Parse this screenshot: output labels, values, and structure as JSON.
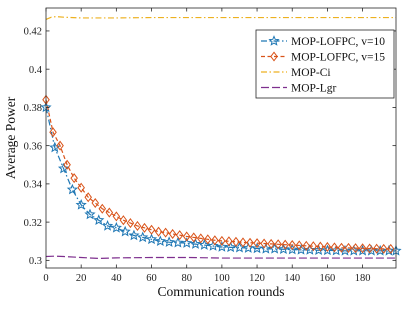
{
  "chart_data": {
    "type": "line",
    "title": "",
    "xlabel": "Communication rounds",
    "ylabel": "Average Power",
    "xlim": [
      0,
      199
    ],
    "ylim": [
      0.296,
      0.432
    ],
    "xticks": [
      0,
      20,
      40,
      60,
      80,
      100,
      120,
      140,
      160,
      180
    ],
    "yticks": [
      0.3,
      0.32,
      0.34,
      0.36,
      0.38,
      0.4,
      0.42
    ],
    "ytick_labels": [
      "0.3",
      "0.32",
      "0.34",
      "0.36",
      "0.38",
      "0.4",
      "0.42"
    ],
    "grid": false,
    "legend_position": "top-right",
    "series": [
      {
        "name": "MOP-LOFPC, v=10",
        "color": "#1f77b4",
        "line_style": "dash-dot",
        "marker": "star",
        "x": [
          0,
          5,
          10,
          15,
          20,
          25,
          30,
          35,
          40,
          45,
          50,
          55,
          60,
          65,
          70,
          75,
          80,
          85,
          90,
          95,
          100,
          105,
          110,
          115,
          120,
          125,
          130,
          135,
          140,
          145,
          150,
          155,
          160,
          165,
          170,
          175,
          180,
          185,
          190,
          195,
          199
        ],
        "y": [
          0.38,
          0.359,
          0.348,
          0.337,
          0.329,
          0.324,
          0.321,
          0.318,
          0.317,
          0.315,
          0.313,
          0.312,
          0.311,
          0.31,
          0.3095,
          0.3092,
          0.309,
          0.3085,
          0.308,
          0.3075,
          0.307,
          0.3068,
          0.3066,
          0.3064,
          0.3062,
          0.306,
          0.306,
          0.3058,
          0.3056,
          0.3055,
          0.3054,
          0.3053,
          0.3052,
          0.3051,
          0.305,
          0.305,
          0.305,
          0.305,
          0.305,
          0.305,
          0.305
        ]
      },
      {
        "name": "MOP-LOFPC, v=15",
        "color": "#d95319",
        "line_style": "dashed",
        "marker": "diamond",
        "x": [
          0,
          4,
          8,
          12,
          16,
          20,
          24,
          28,
          32,
          36,
          40,
          44,
          48,
          52,
          56,
          60,
          64,
          68,
          72,
          76,
          80,
          84,
          88,
          92,
          96,
          100,
          104,
          108,
          112,
          116,
          120,
          124,
          128,
          132,
          136,
          140,
          144,
          148,
          152,
          156,
          160,
          164,
          168,
          172,
          176,
          180,
          184,
          188,
          192,
          196
        ],
        "y": [
          0.384,
          0.367,
          0.36,
          0.35,
          0.343,
          0.338,
          0.333,
          0.33,
          0.327,
          0.325,
          0.323,
          0.321,
          0.3195,
          0.318,
          0.317,
          0.316,
          0.315,
          0.3145,
          0.3138,
          0.3132,
          0.3125,
          0.312,
          0.3115,
          0.311,
          0.3105,
          0.3102,
          0.31,
          0.3097,
          0.3094,
          0.3092,
          0.309,
          0.3088,
          0.3086,
          0.3084,
          0.3082,
          0.308,
          0.3078,
          0.3076,
          0.3074,
          0.3072,
          0.307,
          0.3068,
          0.3066,
          0.3065,
          0.3064,
          0.3063,
          0.3062,
          0.3061,
          0.306,
          0.306
        ]
      },
      {
        "name": "MOP-Ci",
        "color": "#edb120",
        "line_style": "dash-dot",
        "marker": "none",
        "x": [
          0,
          3,
          6,
          10,
          20,
          40,
          60,
          100,
          150,
          199
        ],
        "y": [
          0.426,
          0.4272,
          0.4275,
          0.4272,
          0.4268,
          0.4268,
          0.427,
          0.427,
          0.427,
          0.427
        ]
      },
      {
        "name": "MOP-Lgr",
        "color": "#7e2f8e",
        "line_style": "long-dash",
        "marker": "none",
        "x": [
          0,
          5,
          10,
          20,
          30,
          40,
          60,
          80,
          100,
          120,
          140,
          160,
          180,
          199
        ],
        "y": [
          0.302,
          0.3022,
          0.302,
          0.3015,
          0.301,
          0.3013,
          0.3015,
          0.3015,
          0.3012,
          0.3012,
          0.3012,
          0.3012,
          0.3012,
          0.3012
        ]
      }
    ]
  }
}
